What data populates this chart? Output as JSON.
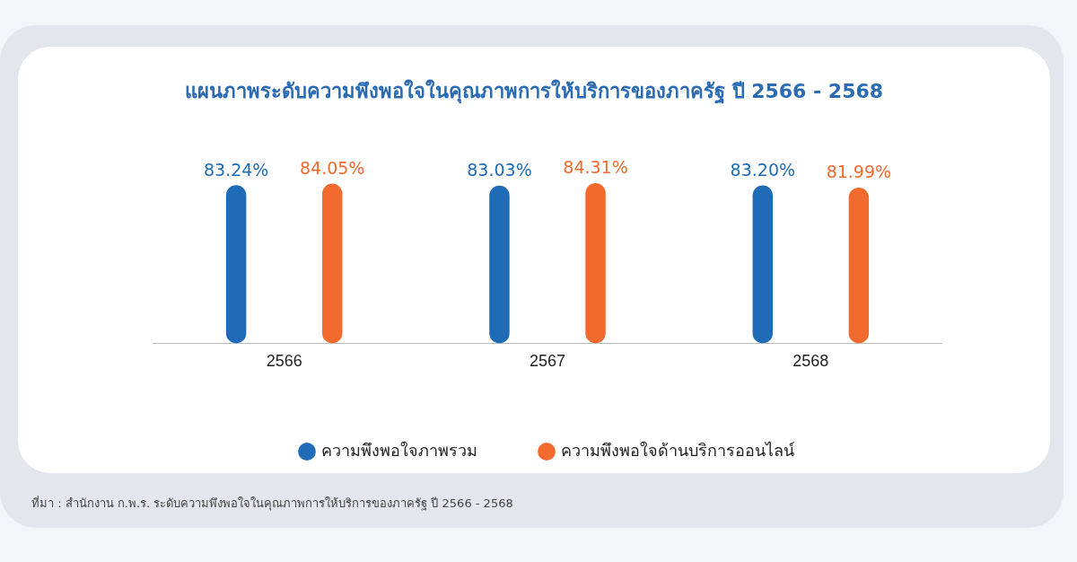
{
  "chart_data": {
    "type": "bar",
    "title": "แผนภาพระดับความพึงพอใจในคุณภาพการให้บริการของภาครัฐ ปี 2566 - 2568",
    "categories": [
      "2566",
      "2567",
      "2568"
    ],
    "series": [
      {
        "name": "ความพึงพอใจภาพรวม",
        "color": "#1f6bb8",
        "values": [
          83.24,
          83.03,
          83.2
        ],
        "value_labels": [
          "83.24%",
          "83.03%",
          "83.20%"
        ]
      },
      {
        "name": "ความพึงพอใจด้านบริการออนไลน์",
        "color": "#f26a2e",
        "values": [
          84.05,
          84.31,
          81.99
        ],
        "value_labels": [
          "84.05%",
          "84.31%",
          "81.99%"
        ]
      }
    ],
    "tick_labels": "x",
    "grid": false,
    "legend": "bottom",
    "annotations": [
      "ที่มา : สำนักงาน ก.พ.ร. ระดับความพึงพอใจในคุณภาพการให้บริการของภาครัฐ ปี 2566 - 2568"
    ]
  }
}
